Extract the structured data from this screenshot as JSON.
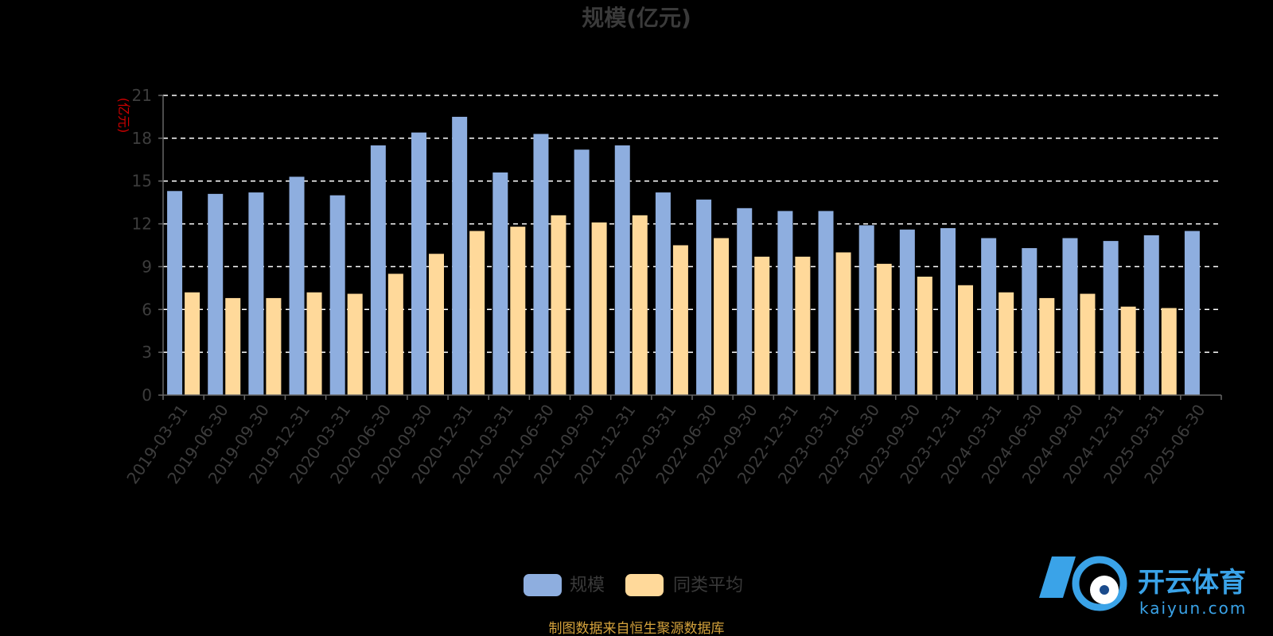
{
  "chart_data": {
    "type": "bar",
    "title": "规模(亿元)",
    "ylabel": "(亿元)",
    "ylim": [
      0,
      21
    ],
    "yticks": [
      0,
      3,
      6,
      9,
      12,
      15,
      18,
      21
    ],
    "grid": true,
    "legend_position": "bottom",
    "categories": [
      "2019-03-31",
      "2019-06-30",
      "2019-09-30",
      "2019-12-31",
      "2020-03-31",
      "2020-06-30",
      "2020-09-30",
      "2020-12-31",
      "2021-03-31",
      "2021-06-30",
      "2021-09-30",
      "2021-12-31",
      "2022-03-31",
      "2022-06-30",
      "2022-09-30",
      "2022-12-31",
      "2023-03-31",
      "2023-06-30",
      "2023-09-30",
      "2023-12-31",
      "2024-03-31",
      "2024-06-30",
      "2024-09-30",
      "2024-12-31",
      "2025-03-31",
      "2025-06-30"
    ],
    "series": [
      {
        "name": "规模",
        "color": "#8eaedf",
        "values": [
          14.3,
          14.1,
          14.2,
          15.3,
          14.0,
          17.5,
          18.4,
          19.5,
          15.6,
          18.3,
          17.2,
          17.5,
          14.2,
          13.7,
          13.1,
          12.9,
          12.9,
          11.9,
          11.6,
          11.7,
          11.0,
          10.3,
          11.0,
          10.8,
          11.2,
          11.5
        ]
      },
      {
        "name": "同类平均",
        "color": "#ffd99a",
        "values": [
          7.2,
          6.8,
          6.8,
          7.2,
          7.1,
          8.5,
          9.9,
          11.5,
          11.8,
          12.6,
          12.1,
          12.6,
          10.5,
          11.0,
          9.7,
          9.7,
          10.0,
          9.2,
          8.3,
          7.7,
          7.2,
          6.8,
          7.1,
          6.2,
          6.1,
          null
        ]
      }
    ],
    "source_note": "制图数据来自恒生聚源数据库"
  },
  "watermark": {
    "text": "开云体育",
    "domain": "kaiyun.com"
  },
  "colors": {
    "background": "#000000",
    "accent": "#3aa3e8"
  }
}
